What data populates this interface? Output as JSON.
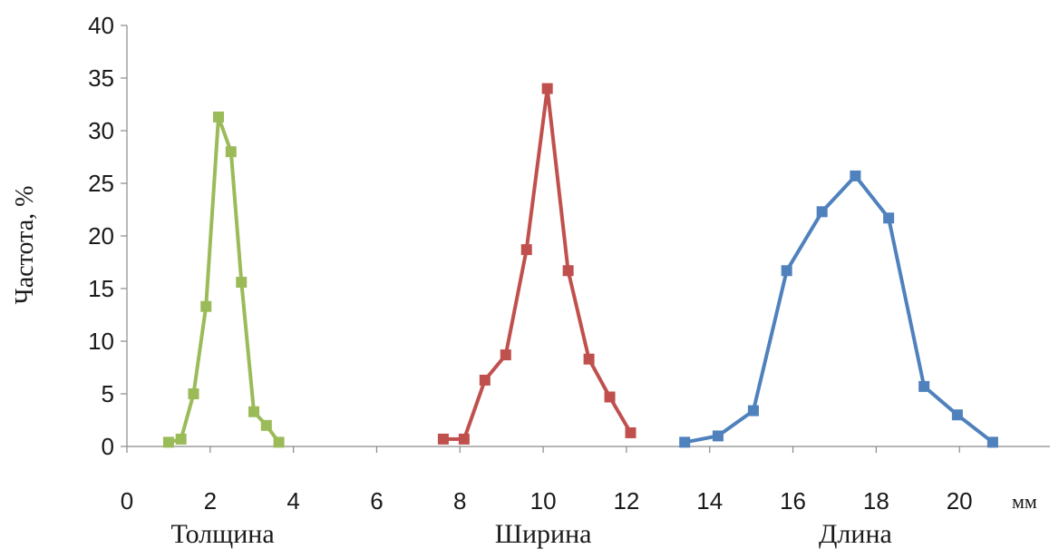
{
  "chart_data": {
    "type": "line",
    "title": "",
    "ylabel": "Частота, %",
    "xunit": "мм",
    "xlim": [
      0,
      22
    ],
    "ylim": [
      0,
      40
    ],
    "x_ticks": [
      0,
      2,
      4,
      6,
      8,
      10,
      12,
      14,
      16,
      18,
      20
    ],
    "y_ticks": [
      0,
      5,
      10,
      15,
      20,
      25,
      30,
      35,
      40
    ],
    "grid": false,
    "legend": "none",
    "category_labels": [
      {
        "text": "Толщина",
        "x": 2.3
      },
      {
        "text": "Ширина",
        "x": 10.0
      },
      {
        "text": "Длина",
        "x": 17.5
      }
    ],
    "series": [
      {
        "color": "#9BBB59",
        "x": [
          1.0,
          1.3,
          1.6,
          1.9,
          2.2,
          2.5,
          2.75,
          3.05,
          3.35,
          3.65
        ],
        "y": [
          0.4,
          0.7,
          5.0,
          13.3,
          31.3,
          28.0,
          15.6,
          3.3,
          2.0,
          0.4
        ]
      },
      {
        "color": "#C0504D",
        "x": [
          7.6,
          8.1,
          8.6,
          9.1,
          9.6,
          10.1,
          10.6,
          11.1,
          11.6,
          12.1
        ],
        "y": [
          0.7,
          0.7,
          6.3,
          8.7,
          18.7,
          34.0,
          16.7,
          8.3,
          4.7,
          1.3
        ]
      },
      {
        "color": "#4F81BD",
        "x": [
          13.4,
          14.2,
          15.05,
          15.85,
          16.7,
          17.5,
          18.3,
          19.15,
          19.95,
          20.8
        ],
        "y": [
          0.4,
          1.0,
          3.4,
          16.7,
          22.3,
          25.7,
          21.7,
          5.7,
          3.0,
          0.4
        ]
      }
    ]
  }
}
